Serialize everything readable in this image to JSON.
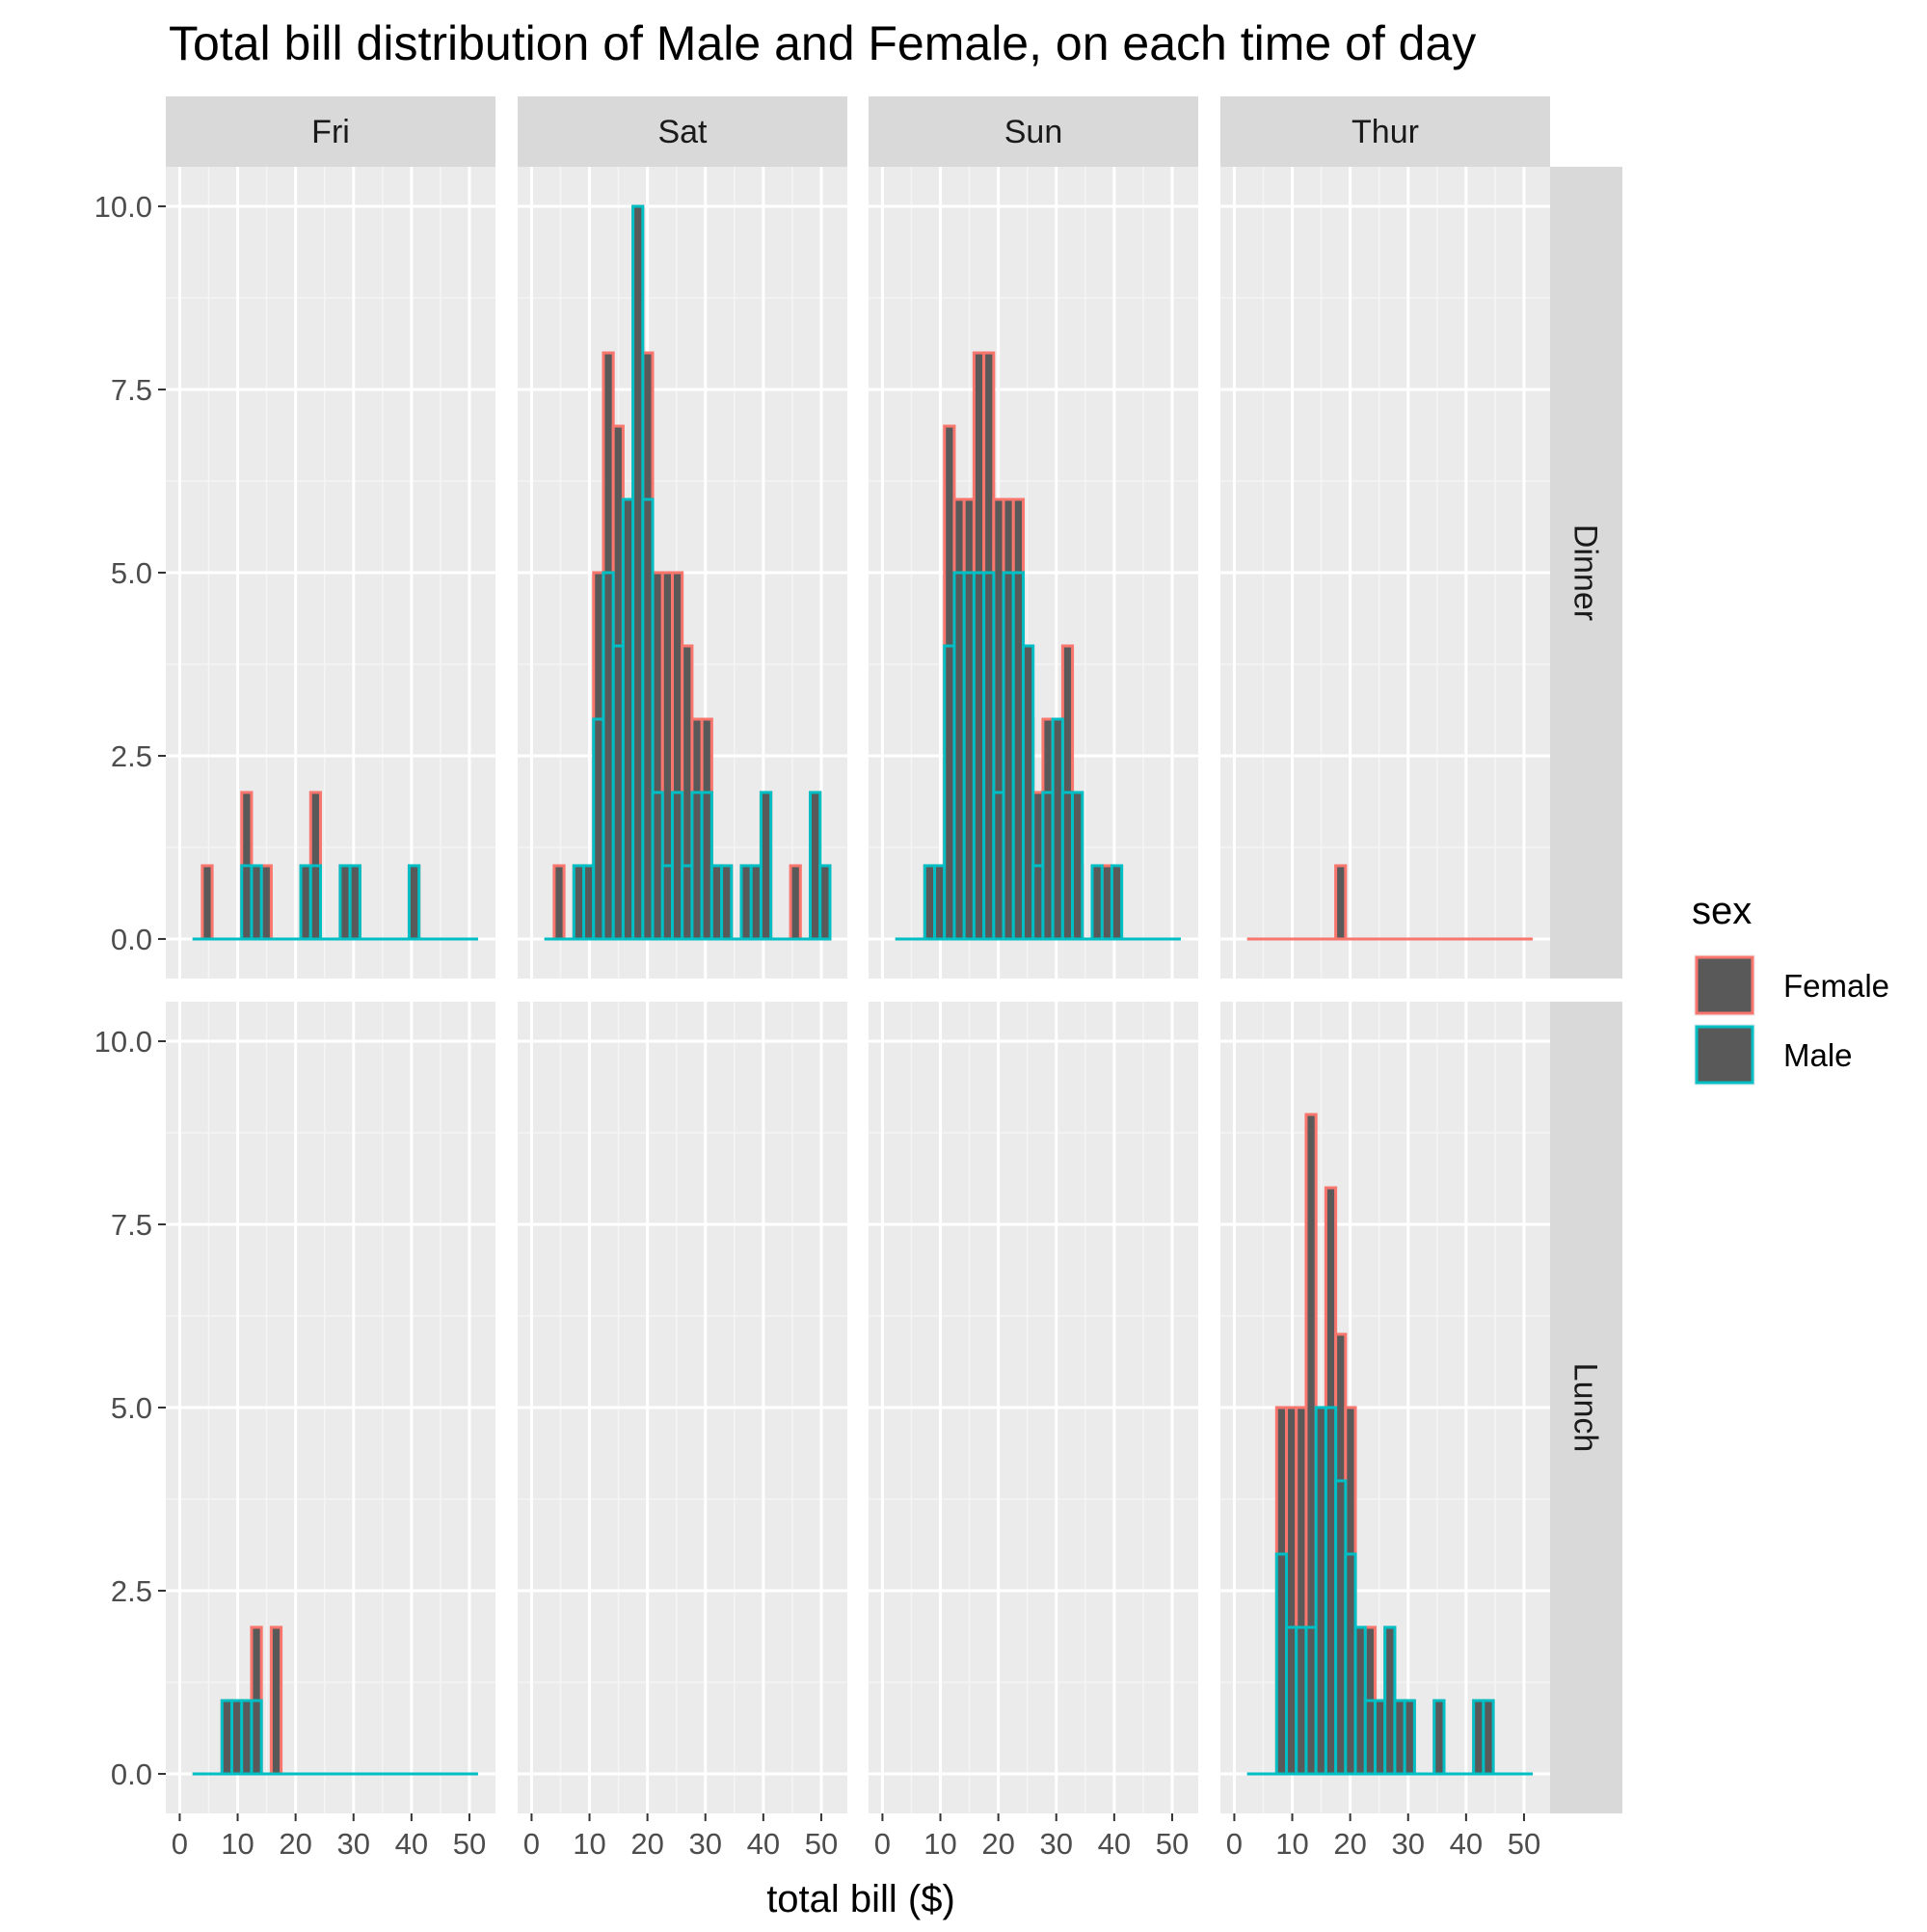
{
  "chart_data": {
    "type": "bar",
    "title": "Total bill distribution of Male and Female, on each time of day",
    "xlabel": "total bill ($)",
    "ylabel": "",
    "xlim": [
      0,
      52
    ],
    "ylim": [
      0,
      10.5
    ],
    "x_ticks": [
      "0",
      "10",
      "20",
      "30",
      "40",
      "50"
    ],
    "y_ticks": [
      "0.0",
      "2.5",
      "5.0",
      "7.5",
      "10.0"
    ],
    "grid": true,
    "legend_position": "right",
    "legend": {
      "title": "sex",
      "items": [
        {
          "label": "Female",
          "color": "#F8766D"
        },
        {
          "label": "Male",
          "color": "#00BFC4"
        }
      ]
    },
    "bar_fill": "#595959",
    "panel_background": "#EBEBEB",
    "strip_background": "#D9D9D9",
    "columns": [
      "Fri",
      "Sat",
      "Sun",
      "Thur"
    ],
    "rows": [
      "Dinner",
      "Lunch"
    ],
    "bin_width": 1.7,
    "bins_start": 2.2,
    "panels": [
      {
        "day": "Fri",
        "time": "Dinner",
        "series": [
          {
            "name": "Female",
            "counts": [
              0,
              1,
              0,
              0,
              0,
              2,
              1,
              1,
              0,
              0,
              0,
              1,
              2,
              0,
              0,
              1,
              1,
              0,
              0,
              0,
              0,
              0,
              1,
              0,
              0,
              0,
              0,
              0,
              0
            ]
          },
          {
            "name": "Male",
            "counts": [
              0,
              0,
              0,
              0,
              0,
              1,
              1,
              0,
              0,
              0,
              0,
              1,
              1,
              0,
              0,
              1,
              1,
              0,
              0,
              0,
              0,
              0,
              1,
              0,
              0,
              0,
              0,
              0,
              0
            ]
          }
        ]
      },
      {
        "day": "Sat",
        "time": "Dinner",
        "series": [
          {
            "name": "Female",
            "counts": [
              0,
              1,
              0,
              1,
              1,
              5,
              8,
              7,
              6,
              10,
              8,
              5,
              5,
              5,
              4,
              3,
              3,
              1,
              1,
              0,
              1,
              1,
              2,
              0,
              0,
              1,
              0,
              2,
              1
            ]
          },
          {
            "name": "Male",
            "counts": [
              0,
              0,
              0,
              1,
              1,
              3,
              5,
              4,
              6,
              10,
              6,
              2,
              1,
              2,
              1,
              2,
              2,
              1,
              1,
              0,
              1,
              1,
              2,
              0,
              0,
              0,
              0,
              2,
              1
            ]
          }
        ]
      },
      {
        "day": "Sun",
        "time": "Dinner",
        "series": [
          {
            "name": "Female",
            "counts": [
              0,
              0,
              0,
              1,
              1,
              7,
              6,
              6,
              8,
              8,
              6,
              6,
              6,
              3,
              2,
              3,
              3,
              4,
              1,
              0,
              1,
              1,
              0,
              0,
              0,
              0,
              0,
              0,
              0
            ]
          },
          {
            "name": "Male",
            "counts": [
              0,
              0,
              0,
              1,
              1,
              4,
              5,
              5,
              5,
              5,
              2,
              5,
              5,
              4,
              1,
              2,
              3,
              2,
              2,
              0,
              1,
              0,
              1,
              0,
              0,
              0,
              0,
              0,
              0
            ]
          }
        ]
      },
      {
        "day": "Thur",
        "time": "Dinner",
        "series": [
          {
            "name": "Female",
            "counts": [
              0,
              0,
              0,
              0,
              0,
              0,
              0,
              0,
              0,
              1,
              0,
              0,
              0,
              0,
              0,
              0,
              0,
              0,
              0,
              0,
              0,
              0,
              0,
              0,
              0,
              0,
              0,
              0,
              0
            ]
          },
          {
            "name": "Male",
            "counts": [
              0,
              0,
              0,
              0,
              0,
              0,
              0,
              0,
              0,
              0,
              0,
              0,
              0,
              0,
              0,
              0,
              0,
              0,
              0,
              0,
              0,
              0,
              0,
              0,
              0,
              0,
              0,
              0,
              0
            ]
          }
        ]
      },
      {
        "day": "Fri",
        "time": "Lunch",
        "series": [
          {
            "name": "Female",
            "counts": [
              0,
              0,
              0,
              1,
              1,
              1,
              2,
              0,
              2,
              0,
              0,
              0,
              0,
              0,
              0,
              0,
              0,
              0,
              0,
              0,
              0,
              0,
              0,
              0,
              0,
              0,
              0,
              0,
              0
            ]
          },
          {
            "name": "Male",
            "counts": [
              0,
              0,
              0,
              1,
              1,
              1,
              1,
              0,
              0,
              0,
              0,
              0,
              0,
              0,
              0,
              0,
              0,
              0,
              0,
              0,
              0,
              0,
              0,
              0,
              0,
              0,
              0,
              0,
              0
            ]
          }
        ]
      },
      {
        "day": "Sat",
        "time": "Lunch",
        "series": []
      },
      {
        "day": "Sun",
        "time": "Lunch",
        "series": []
      },
      {
        "day": "Thur",
        "time": "Lunch",
        "series": [
          {
            "name": "Female",
            "counts": [
              0,
              0,
              0,
              5,
              5,
              5,
              9,
              2,
              8,
              6,
              5,
              2,
              2,
              1,
              2,
              1,
              1,
              0,
              0,
              1,
              0,
              0,
              0,
              1,
              1,
              0,
              0,
              0,
              0
            ]
          },
          {
            "name": "Male",
            "counts": [
              0,
              0,
              0,
              3,
              2,
              2,
              2,
              5,
              5,
              4,
              3,
              2,
              1,
              1,
              2,
              1,
              1,
              0,
              0,
              1,
              0,
              0,
              0,
              1,
              1,
              0,
              0,
              0,
              0
            ]
          }
        ]
      }
    ]
  }
}
